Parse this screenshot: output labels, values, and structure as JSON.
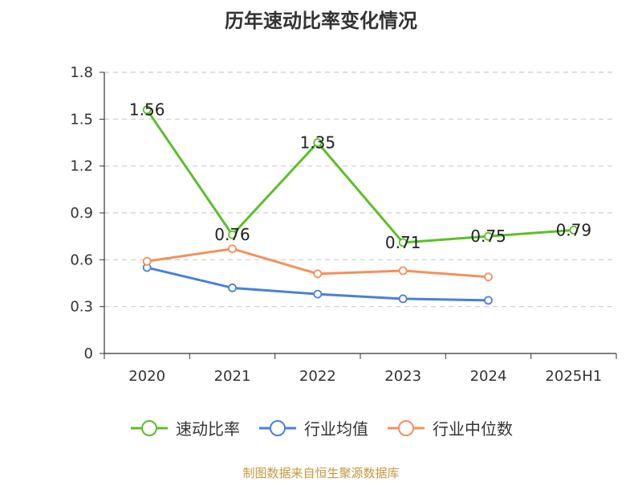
{
  "chart_data": {
    "type": "line",
    "title": "历年速动比率变化情况",
    "categories": [
      "2020",
      "2021",
      "2022",
      "2023",
      "2024",
      "2025H1"
    ],
    "yticks": [
      "0",
      "0.3",
      "0.6",
      "0.9",
      "1.2",
      "1.5",
      "1.8"
    ],
    "ylim": [
      0,
      1.8
    ],
    "grid": true,
    "legend_position": "bottom",
    "series": [
      {
        "name": "速动比率",
        "color": "#5cbf28",
        "values": [
          1.56,
          0.76,
          1.35,
          0.71,
          0.75,
          0.79
        ],
        "labels": [
          "1.56",
          "0.76",
          "1.35",
          "0.71",
          "0.75",
          "0.79"
        ]
      },
      {
        "name": "行业均值",
        "color": "#4a7fdc",
        "values": [
          0.55,
          0.42,
          0.38,
          0.35,
          0.34,
          null
        ]
      },
      {
        "name": "行业中位数",
        "color": "#f5905c",
        "values": [
          0.59,
          0.67,
          0.51,
          0.53,
          0.49,
          null
        ]
      }
    ]
  },
  "source": "制图数据来自恒生聚源数据库"
}
